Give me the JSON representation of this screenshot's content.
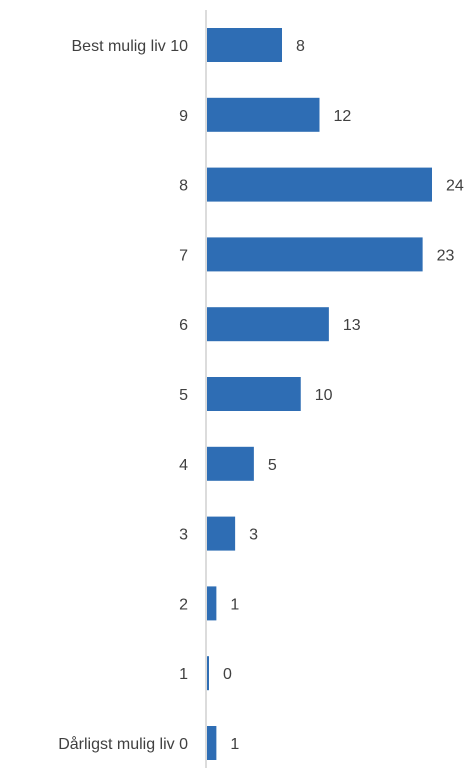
{
  "chart_data": {
    "type": "bar",
    "orientation": "horizontal",
    "categories": [
      "Best mulig liv  10",
      "9",
      "8",
      "7",
      "6",
      "5",
      "4",
      "3",
      "2",
      "1",
      "Dårligst mulig liv  0"
    ],
    "values": [
      8,
      12,
      24,
      23,
      13,
      10,
      5,
      3,
      1,
      0,
      1
    ],
    "xlim": [
      0,
      24
    ],
    "grid": false,
    "legend": "none",
    "colors": {
      "bar": "#2e6db4",
      "axis": "#d0d0d0",
      "text": "#404040"
    }
  }
}
